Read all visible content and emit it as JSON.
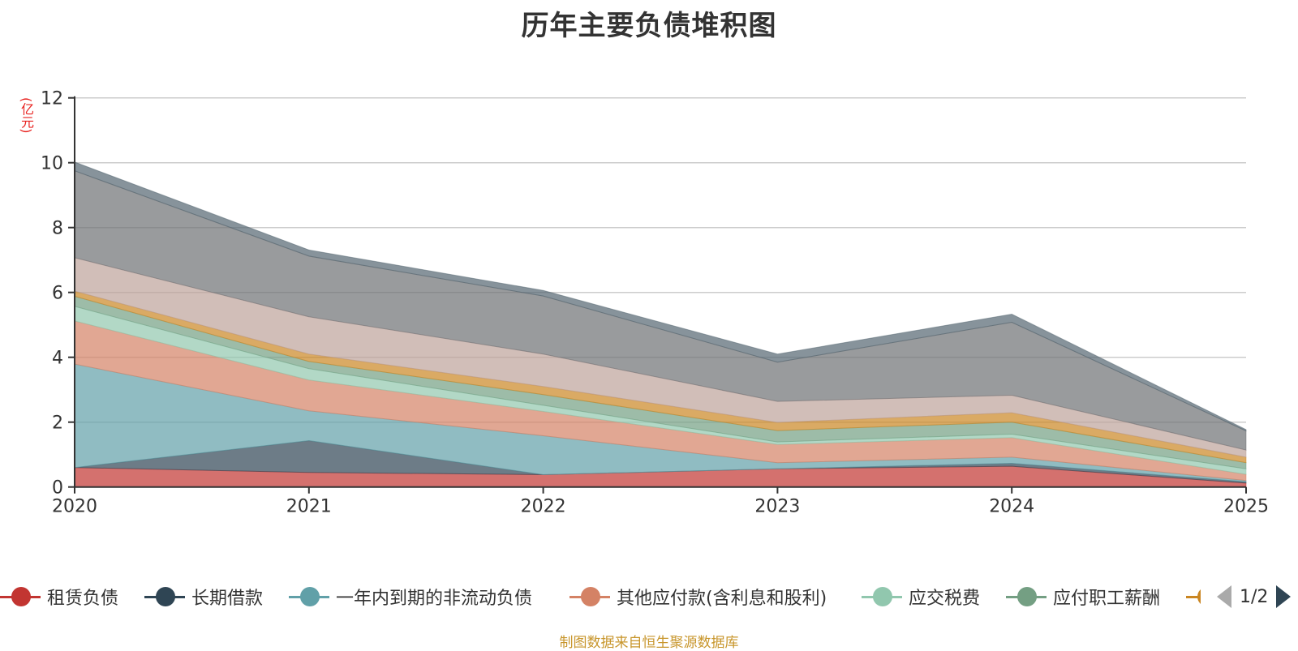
{
  "title": "历年主要负债堆积图",
  "unit_label": "(亿元)",
  "footer": "制图数据来自恒生聚源数据库",
  "legend_pager": {
    "text": "1/2",
    "prev_icon": "triangle-left-icon",
    "next_icon": "triangle-right-icon"
  },
  "chart_data": {
    "type": "area",
    "stacked": true,
    "title": "历年主要负债堆积图",
    "xlabel": "",
    "ylabel": "(亿元)",
    "x": [
      "2020",
      "2021",
      "2022",
      "2023",
      "2024",
      "2025"
    ],
    "ylim": [
      0,
      12
    ],
    "yticks": [
      0,
      2,
      4,
      6,
      8,
      10,
      12
    ],
    "grid": true,
    "legend_position": "bottom",
    "series": [
      {
        "name": "租赁负债",
        "color": "#c23531",
        "values": [
          0.6,
          0.45,
          0.38,
          0.56,
          0.64,
          0.12
        ],
        "legend_visible": true
      },
      {
        "name": "长期借款",
        "color": "#2f4554",
        "values": [
          0.0,
          0.98,
          0.0,
          0.0,
          0.09,
          0.04
        ],
        "legend_visible": true
      },
      {
        "name": "一年内到期的非流动负债",
        "color": "#61a0a8",
        "values": [
          3.19,
          0.92,
          1.2,
          0.19,
          0.19,
          0.04
        ],
        "legend_visible": true
      },
      {
        "name": "其他应付款(含利息和股利)",
        "color": "#d48265",
        "values": [
          1.33,
          0.95,
          0.75,
          0.56,
          0.6,
          0.19
        ],
        "legend_visible": true
      },
      {
        "name": "应交税费",
        "color": "#91c7ae",
        "values": [
          0.45,
          0.35,
          0.19,
          0.08,
          0.11,
          0.17
        ],
        "legend_visible": true
      },
      {
        "name": "应付职工薪酬",
        "color": "#749f83",
        "values": [
          0.31,
          0.22,
          0.33,
          0.35,
          0.37,
          0.19
        ],
        "legend_visible": true
      },
      {
        "name": "",
        "color": "#ca8622",
        "values": [
          0.16,
          0.23,
          0.25,
          0.25,
          0.29,
          0.17
        ],
        "legend_visible": true
      },
      {
        "name": "",
        "color": "#bda29a",
        "values": [
          1.03,
          1.15,
          1.0,
          0.65,
          0.54,
          0.22
        ],
        "legend_visible": false
      },
      {
        "name": "",
        "color": "#6e7074",
        "values": [
          2.68,
          1.87,
          1.79,
          1.21,
          2.25,
          0.59
        ],
        "legend_visible": false
      },
      {
        "name": "",
        "color": "#546570",
        "values": [
          0.27,
          0.19,
          0.17,
          0.25,
          0.25,
          0.04
        ],
        "legend_visible": false
      }
    ]
  }
}
